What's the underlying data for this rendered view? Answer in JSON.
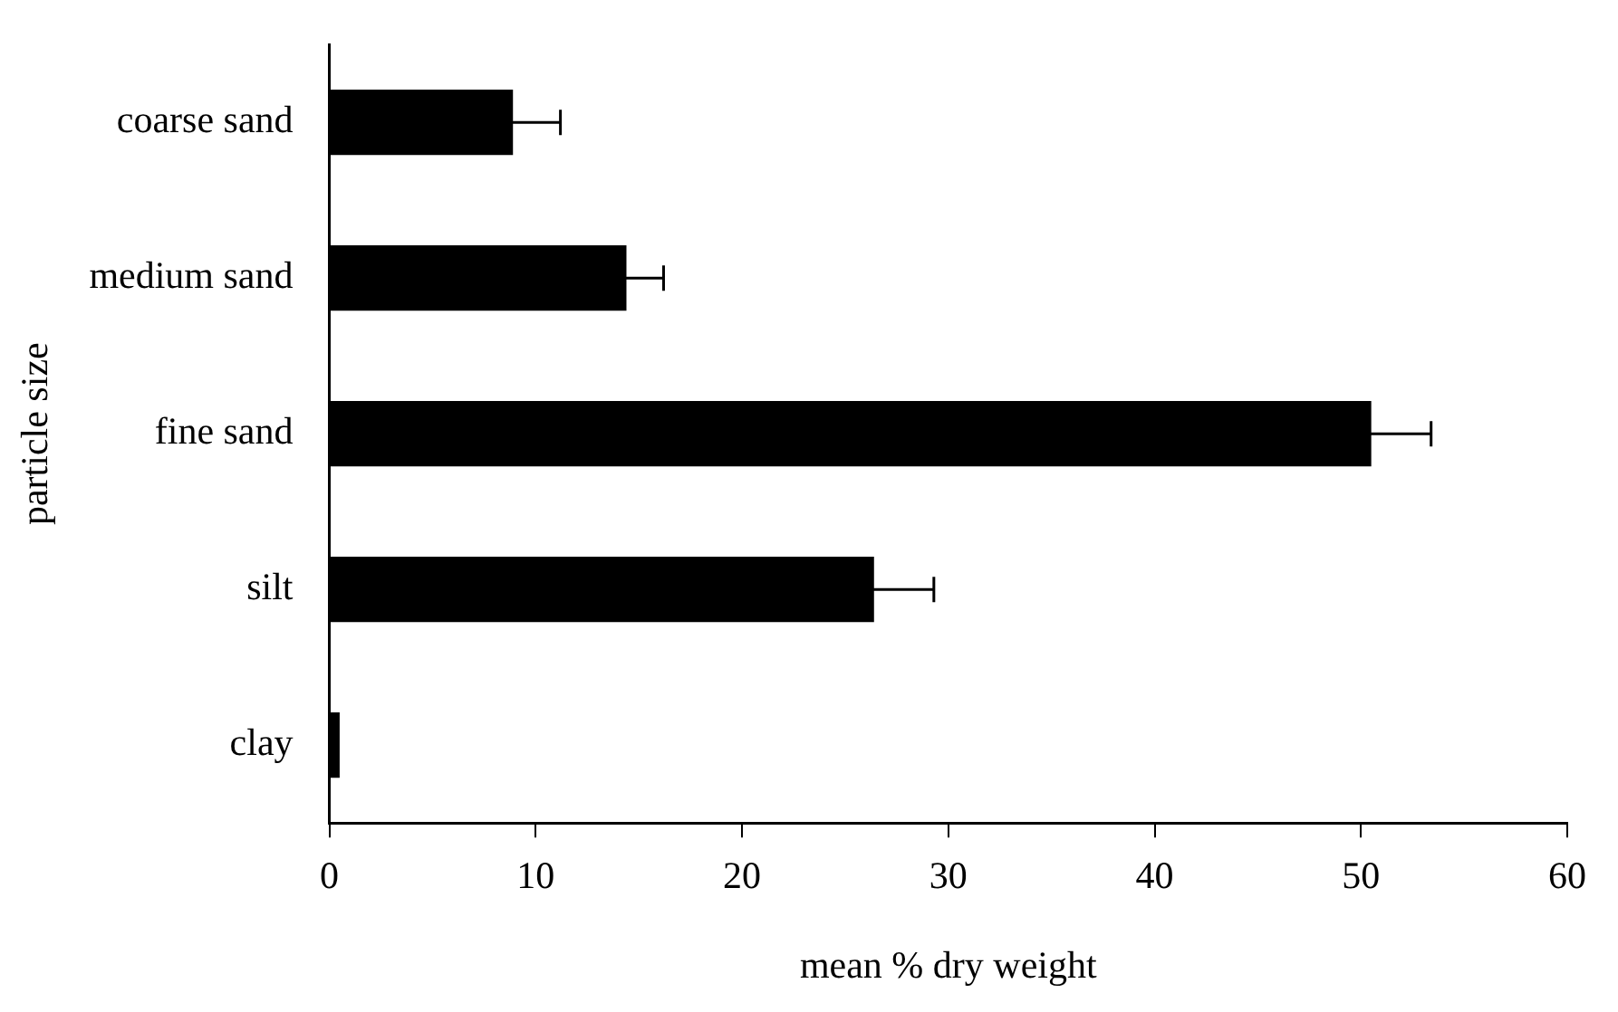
{
  "chart_data": {
    "type": "bar",
    "orientation": "horizontal",
    "xlabel": "mean % dry weight",
    "ylabel": "particle size",
    "categories": [
      "coarse sand",
      "medium sand",
      "fine sand",
      "silt",
      "clay"
    ],
    "values": [
      8.9,
      14.4,
      50.5,
      26.4,
      0.5
    ],
    "errors": [
      2.3,
      1.8,
      2.9,
      2.9,
      null
    ],
    "color": "#000000",
    "xlim": [
      0,
      60
    ],
    "xticks": [
      0,
      10,
      20,
      30,
      40,
      50,
      60
    ],
    "grid": false,
    "legend": false
  }
}
